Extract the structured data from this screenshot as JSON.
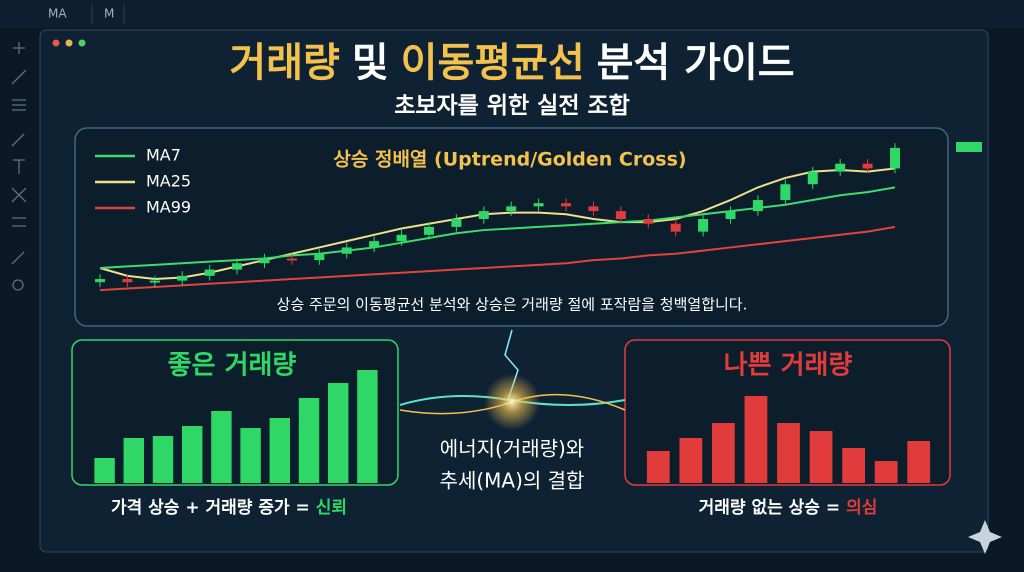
{
  "toolbar": {
    "symbol": "MA",
    "interval": "M"
  },
  "header": {
    "title_parts": [
      {
        "text": "거래량",
        "color": "#f2c14e"
      },
      {
        "text": "및",
        "color": "#ffffff"
      },
      {
        "text": "이동평균선",
        "color": "#f2c14e"
      },
      {
        "text": "분석 가이드",
        "color": "#ffffff"
      }
    ],
    "subtitle": "초보자를 위한 실전 조합"
  },
  "trend_panel": {
    "title": "상승 정배열 (Uptrend/Golden Cross)",
    "caption": "상승 주문의 이동평균선 분석와 상승은 거래량 절에 포작람을 청백열합니다.",
    "ylim": [
      0,
      100
    ],
    "up_color": "#2fd866",
    "down_color": "#e23b3b",
    "open": [
      10,
      12,
      10,
      11,
      14,
      18,
      22,
      25,
      24,
      28,
      32,
      36,
      40,
      45,
      50,
      55,
      58,
      60,
      58,
      55,
      50,
      47,
      42,
      50,
      55,
      62,
      72,
      80,
      85,
      82
    ],
    "close": [
      12,
      10,
      11,
      14,
      18,
      22,
      25,
      24,
      28,
      32,
      36,
      40,
      45,
      50,
      55,
      58,
      60,
      58,
      55,
      50,
      47,
      42,
      50,
      55,
      62,
      72,
      80,
      85,
      82,
      95
    ],
    "high": [
      15,
      15,
      14,
      17,
      21,
      25,
      28,
      28,
      31,
      35,
      39,
      43,
      48,
      53,
      58,
      61,
      63,
      63,
      61,
      58,
      53,
      50,
      53,
      58,
      65,
      75,
      83,
      88,
      88,
      98
    ],
    "low": [
      7,
      7,
      7,
      8,
      11,
      15,
      19,
      21,
      21,
      25,
      29,
      33,
      37,
      42,
      47,
      52,
      55,
      55,
      52,
      47,
      44,
      39,
      39,
      47,
      52,
      59,
      69,
      77,
      79,
      79
    ],
    "ma": [
      {
        "name": "MA7",
        "color": "#3ddc6e",
        "values": [
          19,
          20,
          21,
          22,
          23,
          24,
          25,
          27,
          28,
          30,
          32,
          35,
          38,
          41,
          43,
          44,
          45,
          46,
          47,
          48,
          49,
          51,
          53,
          55,
          57,
          59,
          62,
          65,
          67,
          70
        ]
      },
      {
        "name": "MA25",
        "color": "#ede28a",
        "values": [
          19,
          14,
          12,
          13,
          16,
          20,
          24,
          28,
          32,
          36,
          40,
          44,
          47,
          50,
          53,
          54,
          54,
          53,
          50,
          48,
          48,
          50,
          55,
          62,
          70,
          76,
          80,
          81,
          80,
          82
        ]
      },
      {
        "name": "MA99",
        "color": "#e0453c",
        "values": [
          5,
          6,
          7,
          8,
          9,
          10,
          11,
          12,
          13,
          14,
          15,
          16,
          17,
          18,
          19,
          20,
          21,
          22,
          24,
          25,
          27,
          28,
          30,
          32,
          34,
          36,
          38,
          40,
          42,
          45
        ]
      }
    ]
  },
  "good_volume": {
    "title": "좋은 거래량",
    "color": "#2fd866",
    "values": [
      25,
      45,
      47,
      57,
      72,
      55,
      65,
      85,
      100,
      113
    ],
    "caption_parts": [
      "가격 상승 + 거래량 증가 =",
      "신뢰"
    ]
  },
  "bad_volume": {
    "title": "나쁜 거래량",
    "color": "#e23b3b",
    "values": [
      32,
      45,
      60,
      87,
      60,
      52,
      35,
      22,
      42
    ],
    "caption_parts": [
      "거래량 없는 상승 =",
      "의심"
    ]
  },
  "center_text": [
    "에너지(거래량)와",
    "추세(MA)의 결합"
  ]
}
